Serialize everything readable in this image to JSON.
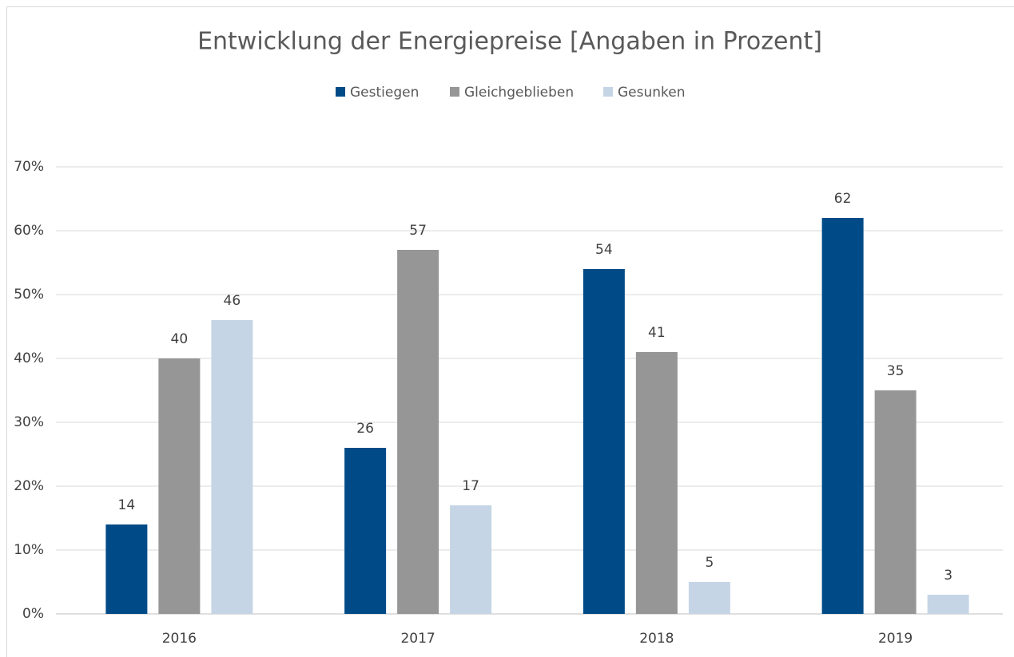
{
  "chart_data": {
    "type": "bar",
    "title": "Entwicklung  der Energiepreise [Angaben in Prozent]",
    "categories": [
      "2016",
      "2017",
      "2018",
      "2019"
    ],
    "series": [
      {
        "name": "Gestiegen",
        "color": "#004b87",
        "values": [
          14,
          26,
          54,
          62
        ]
      },
      {
        "name": "Gleichgeblieben",
        "color": "#969696",
        "values": [
          40,
          57,
          41,
          35
        ]
      },
      {
        "name": "Gesunken",
        "color": "#c5d5e6",
        "values": [
          46,
          17,
          5,
          3
        ]
      }
    ],
    "ylim": [
      0,
      70
    ],
    "yticks": [
      {
        "value": 0,
        "label": "0%"
      },
      {
        "value": 10,
        "label": "10%"
      },
      {
        "value": 20,
        "label": "20%"
      },
      {
        "value": 30,
        "label": "30%"
      },
      {
        "value": 40,
        "label": "40%"
      },
      {
        "value": 50,
        "label": "50%"
      },
      {
        "value": 60,
        "label": "60%"
      },
      {
        "value": 70,
        "label": "70%"
      }
    ],
    "grid": true,
    "legend": "top"
  }
}
